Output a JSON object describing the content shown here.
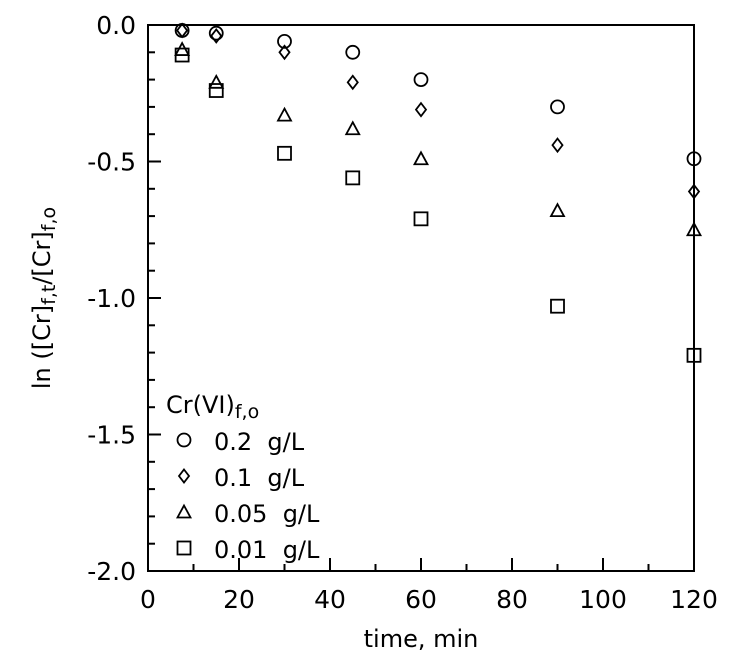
{
  "chart_data": {
    "type": "scatter",
    "xlabel": "time, min",
    "ylabel": {
      "parts": [
        {
          "text": "ln  ([Cr]",
          "sub": false
        },
        {
          "text": "f,t",
          "sub": true
        },
        {
          "text": "/[Cr]",
          "sub": false
        },
        {
          "text": "f,o",
          "sub": true
        }
      ]
    },
    "xlim": [
      0,
      120
    ],
    "ylim": [
      -2.0,
      0.0
    ],
    "xticks": [
      0,
      20,
      40,
      60,
      80,
      100,
      120
    ],
    "xtick_labels": [
      "0",
      "20",
      "40",
      "60",
      "80",
      "100",
      "120"
    ],
    "yticks": [
      0.0,
      -0.5,
      -1.0,
      -1.5,
      -2.0
    ],
    "ytick_labels": [
      "0.0",
      "-0.5",
      "-1.0",
      "-1.5",
      "-2.0"
    ],
    "grid": false,
    "legend": {
      "position": "bottom-left",
      "title": {
        "parts": [
          {
            "text": "Cr(VI)",
            "sub": false
          },
          {
            "text": "f,o",
            "sub": true
          }
        ]
      }
    },
    "series": [
      {
        "name": "0.2  g/L",
        "marker": "circle",
        "x": [
          7.5,
          15,
          30,
          45,
          60,
          90,
          120
        ],
        "y": [
          -0.02,
          -0.03,
          -0.06,
          -0.1,
          -0.2,
          -0.3,
          -0.49
        ]
      },
      {
        "name": "0.1  g/L",
        "marker": "diamond",
        "x": [
          7.5,
          15,
          30,
          45,
          60,
          90,
          120
        ],
        "y": [
          -0.02,
          -0.04,
          -0.1,
          -0.21,
          -0.31,
          -0.44,
          -0.61
        ]
      },
      {
        "name": "0.05  g/L",
        "marker": "triangle",
        "x": [
          7.5,
          15,
          30,
          45,
          60,
          90,
          120
        ],
        "y": [
          -0.09,
          -0.21,
          -0.33,
          -0.38,
          -0.49,
          -0.68,
          -0.75
        ]
      },
      {
        "name": "0.01  g/L",
        "marker": "square",
        "x": [
          7.5,
          15,
          30,
          45,
          60,
          90,
          120
        ],
        "y": [
          -0.11,
          -0.24,
          -0.47,
          -0.56,
          -0.71,
          -1.03,
          -1.21
        ]
      }
    ]
  }
}
